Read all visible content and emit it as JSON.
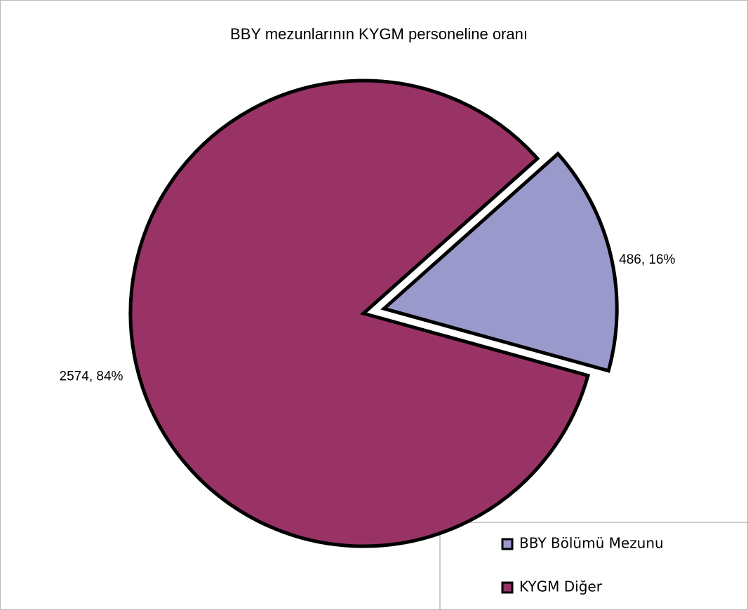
{
  "chart_data": {
    "type": "pie",
    "title": "BBY mezunlarının KYGM personeline oranı",
    "categories": [
      "BBY Bölümü Mezunu",
      "KYGM Diğer"
    ],
    "values": [
      486,
      2574
    ],
    "value_labels": [
      "486, 16%",
      "2574, 84%"
    ],
    "colors": [
      "#9999cc",
      "#993366"
    ],
    "legend": "lower right"
  }
}
